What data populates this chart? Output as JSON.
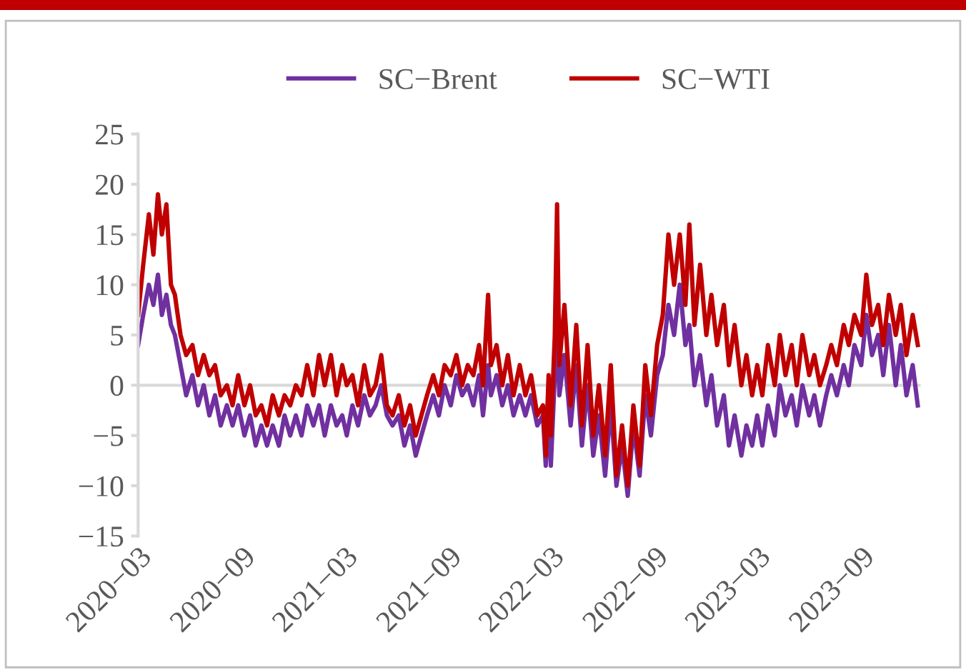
{
  "chart_data": {
    "type": "line",
    "x": [
      "2020-03-01",
      "2020-03-10",
      "2020-03-20",
      "2020-03-28",
      "2020-04-05",
      "2020-04-12",
      "2020-04-20",
      "2020-04-28",
      "2020-05-05",
      "2020-05-15",
      "2020-05-25",
      "2020-06-05",
      "2020-06-15",
      "2020-06-25",
      "2020-07-05",
      "2020-07-15",
      "2020-07-25",
      "2020-08-05",
      "2020-08-15",
      "2020-08-25",
      "2020-09-05",
      "2020-09-15",
      "2020-09-25",
      "2020-10-05",
      "2020-10-15",
      "2020-10-25",
      "2020-11-05",
      "2020-11-15",
      "2020-11-25",
      "2020-12-05",
      "2020-12-15",
      "2020-12-25",
      "2021-01-05",
      "2021-01-15",
      "2021-01-25",
      "2021-02-05",
      "2021-02-15",
      "2021-02-25",
      "2021-03-05",
      "2021-03-15",
      "2021-03-25",
      "2021-04-05",
      "2021-04-15",
      "2021-04-25",
      "2021-05-05",
      "2021-05-15",
      "2021-05-25",
      "2021-06-05",
      "2021-06-15",
      "2021-06-25",
      "2021-07-05",
      "2021-07-15",
      "2021-07-25",
      "2021-08-05",
      "2021-08-15",
      "2021-08-25",
      "2021-09-05",
      "2021-09-15",
      "2021-09-25",
      "2021-10-05",
      "2021-10-15",
      "2021-10-25",
      "2021-11-01",
      "2021-11-10",
      "2021-11-15",
      "2021-11-25",
      "2021-12-05",
      "2021-12-15",
      "2021-12-25",
      "2022-01-05",
      "2022-01-15",
      "2022-01-25",
      "2022-02-05",
      "2022-02-15",
      "2022-02-20",
      "2022-02-25",
      "2022-03-01",
      "2022-03-08",
      "2022-03-12",
      "2022-03-16",
      "2022-03-25",
      "2022-04-05",
      "2022-04-15",
      "2022-04-25",
      "2022-05-05",
      "2022-05-15",
      "2022-05-25",
      "2022-06-05",
      "2022-06-15",
      "2022-06-25",
      "2022-07-05",
      "2022-07-15",
      "2022-07-25",
      "2022-08-05",
      "2022-08-15",
      "2022-08-25",
      "2022-09-05",
      "2022-09-15",
      "2022-09-25",
      "2022-10-05",
      "2022-10-15",
      "2022-10-25",
      "2022-11-01",
      "2022-11-10",
      "2022-11-20",
      "2022-12-01",
      "2022-12-10",
      "2022-12-20",
      "2023-01-01",
      "2023-01-10",
      "2023-01-20",
      "2023-02-01",
      "2023-02-10",
      "2023-02-20",
      "2023-03-01",
      "2023-03-10",
      "2023-03-20",
      "2023-04-01",
      "2023-04-10",
      "2023-04-20",
      "2023-05-01",
      "2023-05-10",
      "2023-05-20",
      "2023-06-01",
      "2023-06-10",
      "2023-06-20",
      "2023-07-01",
      "2023-07-10",
      "2023-07-20",
      "2023-08-01",
      "2023-08-10",
      "2023-08-20",
      "2023-09-01",
      "2023-09-10",
      "2023-09-20",
      "2023-10-01",
      "2023-10-10",
      "2023-10-20",
      "2023-11-01",
      "2023-11-10",
      "2023-11-20",
      "2023-12-01",
      "2023-12-10"
    ],
    "series": [
      {
        "name": "SC−Brent",
        "color": "#7030a0",
        "values": [
          4,
          7,
          10,
          8,
          11,
          7,
          9,
          6,
          5,
          2,
          -1,
          1,
          -2,
          0,
          -3,
          -1,
          -4,
          -2,
          -4,
          -2,
          -5,
          -3,
          -6,
          -4,
          -6,
          -4,
          -6,
          -3,
          -5,
          -3,
          -5,
          -2,
          -4,
          -2,
          -5,
          -2,
          -4,
          -3,
          -5,
          -2,
          -4,
          -1,
          -3,
          -2,
          0,
          -3,
          -4,
          -3,
          -6,
          -4,
          -7,
          -5,
          -3,
          -1,
          -3,
          0,
          -2,
          1,
          -1,
          0,
          -2,
          1,
          -3,
          2,
          -1,
          1,
          -2,
          0,
          -3,
          -1,
          -3,
          -1,
          -4,
          -3,
          -8,
          -2,
          -8,
          1,
          6,
          -1,
          3,
          -4,
          2,
          -6,
          0,
          -7,
          -3,
          -9,
          -2,
          -10,
          -6,
          -11,
          -4,
          -9,
          -1,
          -5,
          1,
          3,
          8,
          5,
          10,
          4,
          6,
          0,
          3,
          -2,
          1,
          -4,
          -1,
          -6,
          -3,
          -7,
          -4,
          -6,
          -3,
          -6,
          -2,
          -5,
          0,
          -3,
          -1,
          -4,
          0,
          -3,
          -1,
          -4,
          -1,
          1,
          -1,
          2,
          0,
          4,
          2,
          7,
          3,
          5,
          1,
          6,
          0,
          4,
          -1,
          2,
          -2
        ]
      },
      {
        "name": "SC−WTI",
        "color": "#c00000",
        "values": [
          7,
          12,
          17,
          13,
          19,
          15,
          18,
          10,
          9,
          5,
          3,
          4,
          1,
          3,
          1,
          2,
          -1,
          0,
          -2,
          1,
          -2,
          0,
          -3,
          -2,
          -4,
          -1,
          -3,
          -1,
          -2,
          0,
          -1,
          2,
          -1,
          3,
          0,
          3,
          -1,
          2,
          0,
          1,
          -2,
          2,
          -1,
          0,
          3,
          -2,
          -3,
          -1,
          -4,
          -2,
          -5,
          -3,
          -1,
          1,
          -1,
          2,
          1,
          3,
          0,
          2,
          1,
          4,
          0,
          9,
          2,
          4,
          0,
          3,
          -1,
          2,
          -1,
          1,
          -3,
          -2,
          -7,
          1,
          -5,
          5,
          18,
          2,
          8,
          -2,
          6,
          -4,
          4,
          -5,
          0,
          -7,
          2,
          -9,
          -4,
          -10,
          -2,
          -8,
          2,
          -3,
          4,
          7,
          15,
          10,
          15,
          8,
          16,
          6,
          12,
          5,
          9,
          4,
          8,
          2,
          6,
          0,
          3,
          -1,
          2,
          -1,
          4,
          0,
          5,
          1,
          4,
          0,
          5,
          1,
          3,
          0,
          2,
          4,
          2,
          6,
          4,
          7,
          5,
          11,
          6,
          8,
          4,
          9,
          5,
          8,
          3,
          7,
          4
        ]
      }
    ],
    "xlim": [
      "2020-03-01",
      "2023-12-15"
    ],
    "xticks": [
      {
        "value": "2020-03",
        "label": "2020−03"
      },
      {
        "value": "2020-09",
        "label": "2020−09"
      },
      {
        "value": "2021-03",
        "label": "2021−03"
      },
      {
        "value": "2021-09",
        "label": "2021−09"
      },
      {
        "value": "2022-03",
        "label": "2022−03"
      },
      {
        "value": "2022-09",
        "label": "2022−09"
      },
      {
        "value": "2023-03",
        "label": "2023−03"
      },
      {
        "value": "2023-09",
        "label": "2023−09"
      }
    ],
    "ylim": [
      -15,
      25
    ],
    "yticks": [
      {
        "value": -15,
        "label": "−15"
      },
      {
        "value": -10,
        "label": "−10"
      },
      {
        "value": -5,
        "label": "−5"
      },
      0,
      5,
      10,
      15,
      20,
      25
    ],
    "ref_lines": [
      {
        "axis": "y",
        "value": 0,
        "color": "#d9d9d9"
      }
    ],
    "grid": false,
    "legend": "top",
    "marker": "none",
    "line_style": "solid"
  }
}
